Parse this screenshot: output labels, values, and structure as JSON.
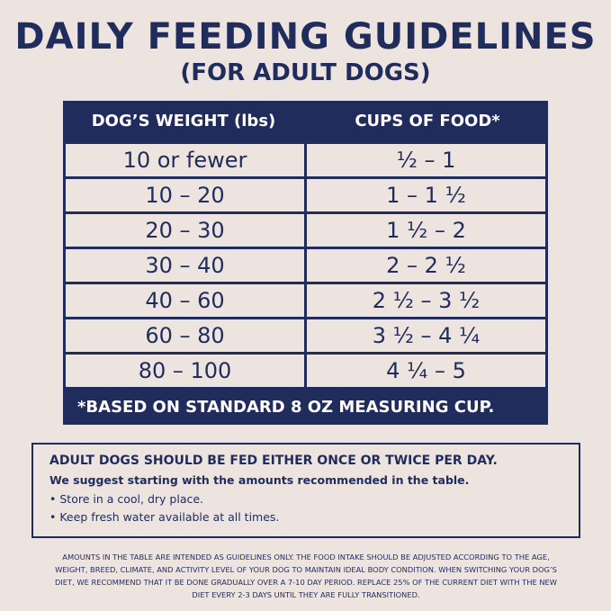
{
  "header": {
    "title": "DAILY FEEDING GUIDELINES",
    "subtitle": "(FOR ADULT DOGS)"
  },
  "table": {
    "columns": [
      "DOG’S WEIGHT (lbs)",
      "CUPS OF FOOD*"
    ],
    "rows": [
      [
        "10 or fewer",
        "½ – 1"
      ],
      [
        "10 – 20",
        "1 – 1 ½"
      ],
      [
        "20 – 30",
        "1 ½ – 2"
      ],
      [
        "30 – 40",
        "2 – 2 ½"
      ],
      [
        "40 – 60",
        "2 ½ – 3 ½"
      ],
      [
        "60 – 80",
        "3 ½ – 4 ¼"
      ],
      [
        "80 – 100",
        "4 ¼ – 5"
      ]
    ],
    "footnote": "*BASED ON STANDARD 8 OZ MEASURING CUP."
  },
  "info": {
    "heading": "ADULT DOGS SHOULD BE FED EITHER ONCE OR TWICE PER DAY.",
    "subheading": "We suggest starting with the amounts recommended in the table.",
    "bullets": [
      "Store in a cool, dry place.",
      "Keep fresh water available at all times."
    ]
  },
  "disclaimer": "AMOUNTS IN THE TABLE ARE INTENDED AS GUIDELINES ONLY. THE FOOD INTAKE SHOULD BE ADJUSTED ACCORDING TO THE AGE, WEIGHT, BREED, CLIMATE, AND ACTIVITY LEVEL OF YOUR DOG TO MAINTAIN IDEAL BODY CONDITION. WHEN SWITCHING YOUR DOG’S DIET, WE RECOMMEND THAT IT BE DONE GRADUALLY OVER A 7-10 DAY PERIOD. REPLACE 25% OF THE CURRENT DIET WITH THE NEW DIET EVERY 2-3 DAYS UNTIL THEY ARE FULLY TRANSITIONED."
}
